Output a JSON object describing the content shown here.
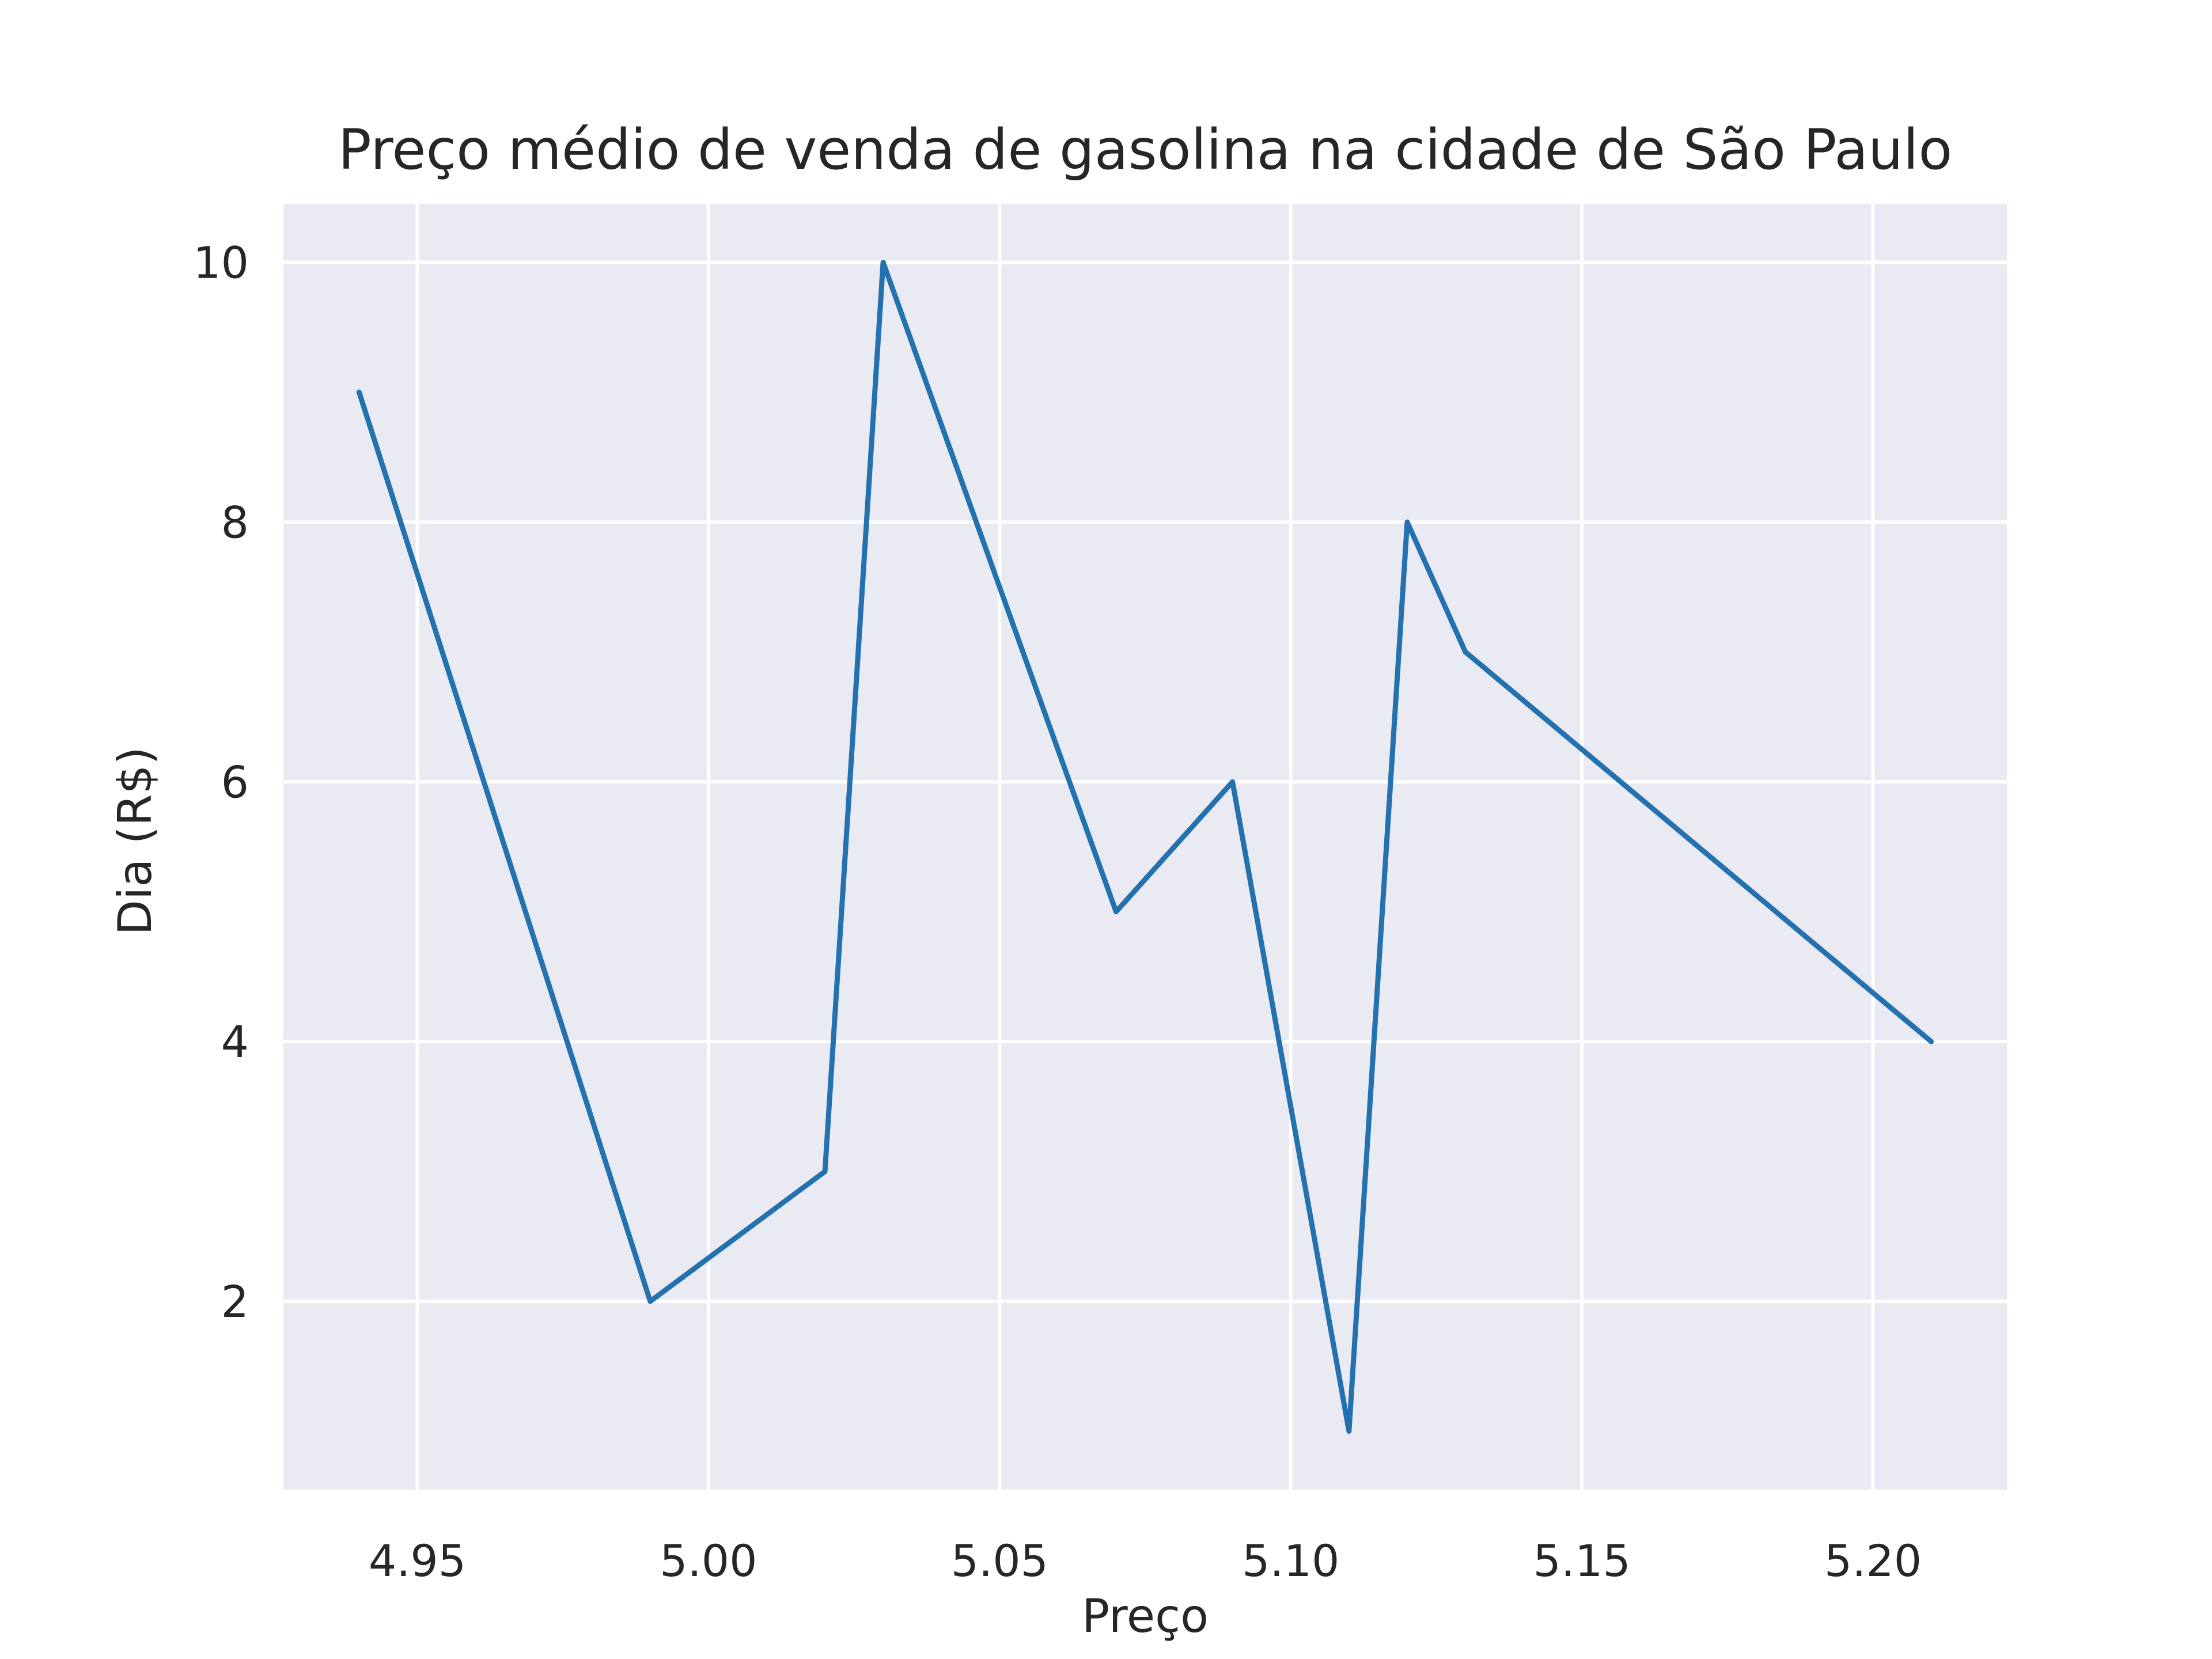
{
  "colors": {
    "plot_background": "#EAEAF2",
    "grid": "#FFFFFF",
    "line": "#2471B0",
    "text": "#262626"
  },
  "chart_data": {
    "type": "line",
    "title": "Preço médio de venda de gasolina na cidade de São Paulo",
    "xlabel": "Preço",
    "ylabel": "Dia (R$)",
    "xlim": [
      4.927,
      5.223
    ],
    "ylim": [
      0.55,
      10.45
    ],
    "x_ticks": [
      4.95,
      5.0,
      5.05,
      5.1,
      5.15,
      5.2
    ],
    "x_tick_labels": [
      "4.95",
      "5.00",
      "5.05",
      "5.10",
      "5.15",
      "5.20"
    ],
    "y_ticks": [
      2,
      4,
      6,
      8,
      10
    ],
    "y_tick_labels": [
      "2",
      "4",
      "6",
      "8",
      "10"
    ],
    "grid": true,
    "legend": "none",
    "series": [
      {
        "x": [
          4.94,
          4.99,
          5.02,
          5.03,
          5.07,
          5.09,
          5.11,
          5.12,
          5.13,
          5.21
        ],
        "y": [
          9,
          2,
          3,
          10,
          5,
          6,
          1,
          8,
          7,
          4
        ]
      }
    ]
  }
}
